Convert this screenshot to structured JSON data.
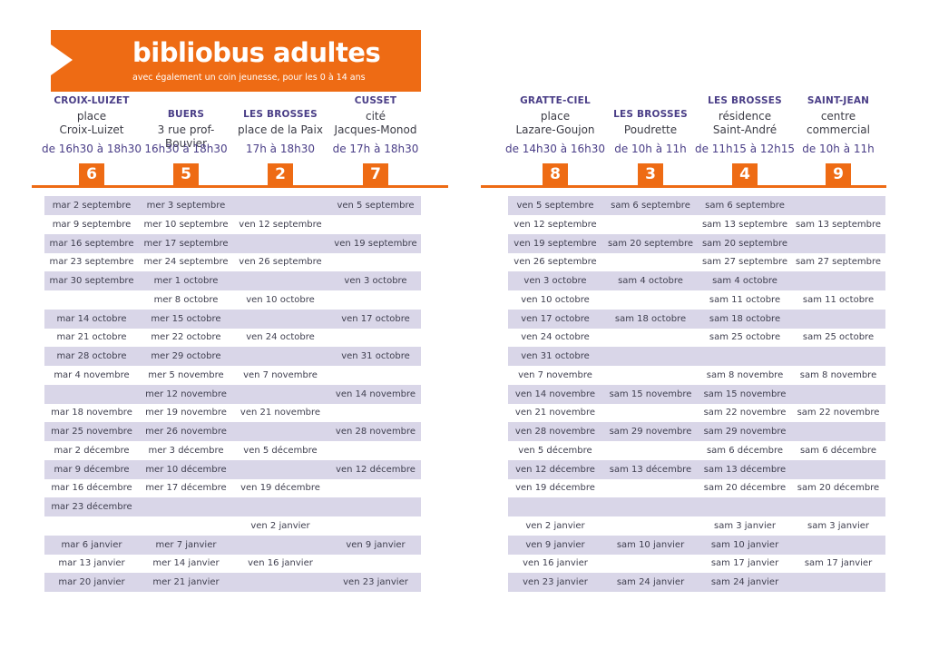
{
  "banner": {
    "title": "bibliobus adultes",
    "subtitle": "avec également un coin jeunesse, pour les 0 à 14 ans"
  },
  "colors": {
    "accent": "#ee6b14",
    "header": "#4a3e87",
    "shaded_row": "#d9d6e8"
  },
  "left_table": {
    "columns": [
      {
        "name": "CROIX-LUIZET",
        "place": "place\nCroix-Luizet",
        "time": "de 16h30 à 18h30",
        "number": "6"
      },
      {
        "name": "BUERS",
        "place": "3 rue prof-Bouvier",
        "time": "16h30 à 18h30",
        "number": "5"
      },
      {
        "name": "LES BROSSES",
        "place": "place de la Paix",
        "time": "17h à 18h30",
        "number": "2"
      },
      {
        "name": "CUSSET",
        "place": "cité\nJacques-Monod",
        "time": "de 17h à 18h30",
        "number": "7"
      }
    ],
    "rows": [
      [
        "mar 2 septembre",
        "mer 3 septembre",
        "",
        "ven 5 septembre"
      ],
      [
        "mar 9 septembre",
        "mer 10 septembre",
        "ven 12 septembre",
        ""
      ],
      [
        "mar 16 septembre",
        "mer 17 septembre",
        "",
        "ven 19 septembre"
      ],
      [
        "mar 23 septembre",
        "mer 24 septembre",
        "ven 26 septembre",
        ""
      ],
      [
        "mar 30 septembre",
        "mer 1 octobre",
        "",
        "ven 3 octobre"
      ],
      [
        "",
        "mer 8 octobre",
        "ven 10 octobre",
        ""
      ],
      [
        "mar 14 octobre",
        "mer 15 octobre",
        "",
        "ven 17 octobre"
      ],
      [
        "mar 21 octobre",
        "mer 22 octobre",
        "ven 24 octobre",
        ""
      ],
      [
        "mar 28 octobre",
        "mer 29 octobre",
        "",
        "ven 31 octobre"
      ],
      [
        "mar 4 novembre",
        "mer 5 novembre",
        "ven 7 novembre",
        ""
      ],
      [
        "",
        "mer 12 novembre",
        "",
        "ven 14 novembre"
      ],
      [
        "mar 18 novembre",
        "mer 19 novembre",
        "ven 21 novembre",
        ""
      ],
      [
        "mar 25 novembre",
        "mer 26 novembre",
        "",
        "ven 28 novembre"
      ],
      [
        "mar 2 décembre",
        "mer 3 décembre",
        "ven 5 décembre",
        ""
      ],
      [
        "mar 9 décembre",
        "mer 10 décembre",
        "",
        "ven 12 décembre"
      ],
      [
        "mar 16 décembre",
        "mer 17 décembre",
        "ven 19 décembre",
        ""
      ],
      [
        "mar 23 décembre",
        "",
        "",
        ""
      ],
      [
        "",
        "",
        "ven 2 janvier",
        ""
      ],
      [
        "mar 6 janvier",
        "mer 7 janvier",
        "",
        "ven 9 janvier"
      ],
      [
        "mar 13 janvier",
        "mer 14 janvier",
        "ven 16 janvier",
        ""
      ],
      [
        "mar 20 janvier",
        "mer 21 janvier",
        "",
        "ven 23 janvier"
      ]
    ]
  },
  "right_table": {
    "columns": [
      {
        "name": "GRATTE-CIEL",
        "place": "place\nLazare-Goujon",
        "time": "de 14h30 à 16h30",
        "number": "8"
      },
      {
        "name": "LES BROSSES",
        "place": "Poudrette",
        "time": "de 10h à 11h",
        "number": "3"
      },
      {
        "name": "LES BROSSES",
        "place": "résidence\nSaint-André",
        "time": "de 11h15 à 12h15",
        "number": "4"
      },
      {
        "name": "SAINT-JEAN",
        "place": "centre\ncommercial",
        "time": "de 10h à 11h",
        "number": "9"
      }
    ],
    "rows": [
      [
        "ven 5 septembre",
        "sam 6 septembre",
        "sam 6 septembre",
        ""
      ],
      [
        "ven 12 septembre",
        "",
        "sam 13 septembre",
        "sam 13 septembre"
      ],
      [
        "ven 19 septembre",
        "sam 20 septembre",
        "sam 20 septembre",
        ""
      ],
      [
        "ven 26 septembre",
        "",
        "sam 27 septembre",
        "sam 27 septembre"
      ],
      [
        "ven 3 octobre",
        "sam 4 octobre",
        "sam 4 octobre",
        ""
      ],
      [
        "ven 10 octobre",
        "",
        "sam 11 octobre",
        "sam 11 octobre"
      ],
      [
        "ven 17 octobre",
        "sam 18 octobre",
        "sam 18 octobre",
        ""
      ],
      [
        "ven 24 octobre",
        "",
        "sam 25 octobre",
        "sam 25 octobre"
      ],
      [
        "ven 31 octobre",
        "",
        "",
        ""
      ],
      [
        "ven 7 novembre",
        "",
        "sam 8 novembre",
        "sam 8 novembre"
      ],
      [
        "ven 14 novembre",
        "sam 15 novembre",
        "sam 15 novembre",
        ""
      ],
      [
        "ven 21 novembre",
        "",
        "sam 22 novembre",
        "sam 22 novembre"
      ],
      [
        "ven 28 novembre",
        "sam 29 novembre",
        "sam 29 novembre",
        ""
      ],
      [
        "ven 5 décembre",
        "",
        "sam 6 décembre",
        "sam 6 décembre"
      ],
      [
        "ven 12 décembre",
        "sam 13 décembre",
        "sam 13 décembre",
        ""
      ],
      [
        "ven 19 décembre",
        "",
        "sam 20 décembre",
        "sam 20 décembre"
      ],
      [
        "",
        "",
        "",
        ""
      ],
      [
        "ven 2 janvier",
        "",
        "sam 3 janvier",
        "sam 3 janvier"
      ],
      [
        "ven 9 janvier",
        "sam 10 janvier",
        "sam 10 janvier",
        ""
      ],
      [
        "ven 16 janvier",
        "",
        "sam 17 janvier",
        "sam 17 janvier"
      ],
      [
        "ven 23 janvier",
        "sam 24 janvier",
        "sam 24 janvier",
        ""
      ]
    ]
  }
}
